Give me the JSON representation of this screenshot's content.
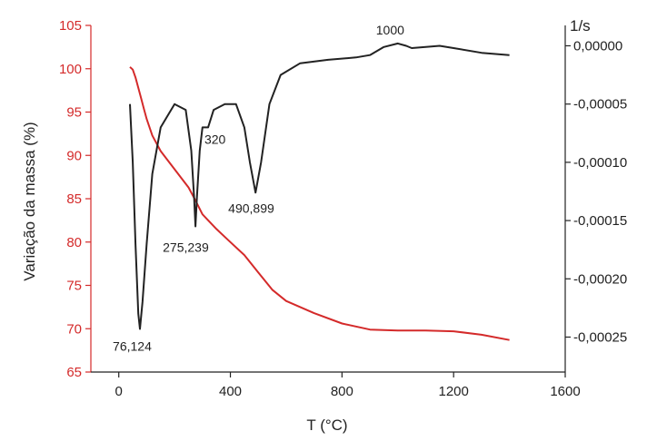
{
  "chart_data": {
    "type": "line",
    "xlabel": "T (°C)",
    "ylabel_left": "Variação da massa (%)",
    "ylabel_right": "1/s",
    "xlim": [
      -100,
      1600
    ],
    "ylim_left": [
      65,
      105
    ],
    "ylim_right": [
      -0.00028,
      1.75e-05
    ],
    "x_ticks": [
      0,
      400,
      800,
      1200,
      1600
    ],
    "x_tick_labels": [
      "0",
      "400",
      "800",
      "1200",
      "1600"
    ],
    "y_left_ticks": [
      65,
      70,
      75,
      80,
      85,
      90,
      95,
      100,
      105
    ],
    "y_left_tick_labels": [
      "65",
      "70",
      "75",
      "80",
      "85",
      "90",
      "95",
      "100",
      "105"
    ],
    "y_right_ticks": [
      0,
      -5e-05,
      -0.0001,
      -0.00015,
      -0.0002,
      -0.00025
    ],
    "y_right_tick_labels": [
      "0,00000",
      "-0,00005",
      "-0,00010",
      "-0,00015",
      "-0,00020",
      "-0,00025"
    ],
    "colors": {
      "mass": "#d42a2a",
      "dtg": "#222222",
      "axis_left": "#d42a2a",
      "axis_right": "#222222"
    },
    "series": [
      {
        "axis": "left",
        "color": "#d42a2a",
        "x": [
          40,
          50,
          60,
          70,
          80,
          90,
          100,
          120,
          150,
          200,
          250,
          275,
          300,
          350,
          400,
          450,
          500,
          550,
          600,
          700,
          800,
          900,
          1000,
          1100,
          1200,
          1300,
          1400
        ],
        "values": [
          100.2,
          99.9,
          99.0,
          97.8,
          96.6,
          95.4,
          94.2,
          92.3,
          90.5,
          88.4,
          86.3,
          84.8,
          83.2,
          81.5,
          80.0,
          78.5,
          76.5,
          74.5,
          73.2,
          71.8,
          70.6,
          69.9,
          69.8,
          69.8,
          69.7,
          69.3,
          68.7
        ]
      },
      {
        "axis": "right",
        "color": "#222222",
        "x": [
          40,
          50,
          60,
          70,
          76,
          85,
          100,
          120,
          150,
          200,
          240,
          260,
          270,
          275,
          280,
          290,
          300,
          320,
          340,
          380,
          420,
          450,
          470,
          490,
          510,
          540,
          580,
          650,
          750,
          850,
          900,
          950,
          1000,
          1030,
          1050,
          1100,
          1150,
          1200,
          1300,
          1400
        ],
        "values": [
          -5e-05,
          -0.0001,
          -0.00017,
          -0.00023,
          -0.000243,
          -0.00022,
          -0.00017,
          -0.00011,
          -7e-05,
          -5e-05,
          -5.5e-05,
          -9e-05,
          -0.00013,
          -0.000155,
          -0.00013,
          -9e-05,
          -7e-05,
          -7e-05,
          -5.5e-05,
          -5e-05,
          -5e-05,
          -7e-05,
          -0.0001,
          -0.000126,
          -0.0001,
          -5e-05,
          -2.5e-05,
          -1.5e-05,
          -1.2e-05,
          -1e-05,
          -8e-06,
          -1e-06,
          2e-06,
          0.0,
          -2e-06,
          -1e-06,
          0.0,
          -2e-06,
          -6e-06,
          -8e-06
        ]
      }
    ],
    "annotations": [
      {
        "text": "76,124",
        "x": 76,
        "y": -0.000243
      },
      {
        "text": "275,239",
        "x": 275,
        "y": -0.000155
      },
      {
        "text": "320",
        "x": 320,
        "y": -7e-05
      },
      {
        "text": "490,899",
        "x": 490,
        "y": -0.000126
      },
      {
        "text": "1000",
        "x": 1000,
        "y": 2e-06
      }
    ]
  }
}
